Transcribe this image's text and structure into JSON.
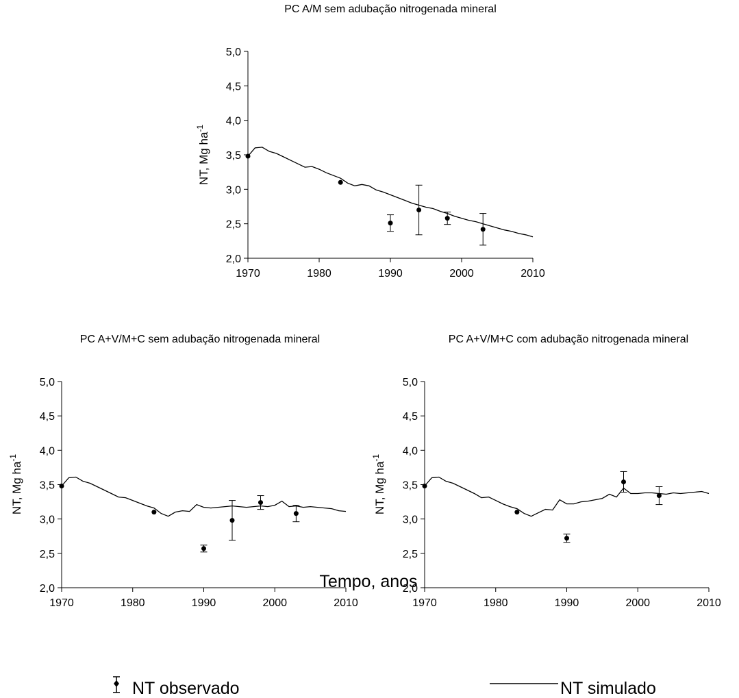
{
  "figure": {
    "xlabel": "Tempo, anos",
    "legend": {
      "observed_label": "NT observado",
      "simulated_label": "NT simulado"
    }
  },
  "chart_data": [
    {
      "type": "line",
      "title": "PC A/M sem adubação nitrogenada mineral",
      "ylabel_main": "NT, Mg ha",
      "ylabel_sup": "-1",
      "xlim": [
        1970,
        2010
      ],
      "ylim": [
        2.0,
        5.0
      ],
      "x_ticks": [
        1970,
        1980,
        1990,
        2000,
        2010
      ],
      "y_ticks": [
        "2,0",
        "2,5",
        "3,0",
        "3,5",
        "4,0",
        "4,5",
        "5,0"
      ],
      "series": [
        {
          "kind": "line",
          "x": [
            1970,
            1971,
            1972,
            1973,
            1974,
            1975,
            1976,
            1977,
            1978,
            1979,
            1980,
            1981,
            1982,
            1983,
            1984,
            1985,
            1986,
            1987,
            1988,
            1989,
            1990,
            1991,
            1992,
            1993,
            1994,
            1995,
            1996,
            1997,
            1998,
            1999,
            2000,
            2001,
            2002,
            2003,
            2004,
            2005,
            2006,
            2007,
            2008,
            2009,
            2010
          ],
          "y": [
            3.48,
            3.6,
            3.61,
            3.55,
            3.52,
            3.47,
            3.42,
            3.37,
            3.32,
            3.33,
            3.29,
            3.24,
            3.2,
            3.16,
            3.09,
            3.05,
            3.07,
            3.05,
            2.99,
            2.96,
            2.92,
            2.88,
            2.84,
            2.8,
            2.77,
            2.74,
            2.72,
            2.68,
            2.65,
            2.61,
            2.58,
            2.55,
            2.53,
            2.5,
            2.47,
            2.44,
            2.41,
            2.39,
            2.36,
            2.34,
            2.31
          ]
        },
        {
          "kind": "points",
          "x": [
            1970,
            1983,
            1990,
            1994,
            1998,
            2003
          ],
          "y": [
            3.48,
            3.1,
            2.51,
            2.7,
            2.58,
            2.42
          ],
          "err": [
            0,
            0,
            0.12,
            0.36,
            0.09,
            0.23
          ]
        }
      ]
    },
    {
      "type": "line",
      "title": "PC A+V/M+C sem adubação nitrogenada mineral",
      "ylabel_main": "NT, Mg ha",
      "ylabel_sup": "-1",
      "xlim": [
        1970,
        2010
      ],
      "ylim": [
        2.0,
        5.0
      ],
      "x_ticks": [
        1970,
        1980,
        1990,
        2000,
        2010
      ],
      "y_ticks": [
        "2,0",
        "2,5",
        "3,0",
        "3,5",
        "4,0",
        "4,5",
        "5,0"
      ],
      "series": [
        {
          "kind": "line",
          "x": [
            1970,
            1971,
            1972,
            1973,
            1974,
            1975,
            1976,
            1977,
            1978,
            1979,
            1980,
            1981,
            1982,
            1983,
            1984,
            1985,
            1986,
            1987,
            1988,
            1989,
            1990,
            1991,
            1992,
            1993,
            1994,
            1995,
            1996,
            1997,
            1998,
            1999,
            2000,
            2001,
            2002,
            2003,
            2004,
            2005,
            2006,
            2007,
            2008,
            2009,
            2010
          ],
          "y": [
            3.48,
            3.6,
            3.61,
            3.55,
            3.52,
            3.47,
            3.42,
            3.37,
            3.32,
            3.31,
            3.27,
            3.23,
            3.19,
            3.16,
            3.08,
            3.04,
            3.1,
            3.12,
            3.11,
            3.21,
            3.17,
            3.16,
            3.17,
            3.18,
            3.19,
            3.18,
            3.17,
            3.18,
            3.19,
            3.18,
            3.2,
            3.26,
            3.18,
            3.19,
            3.17,
            3.18,
            3.17,
            3.16,
            3.15,
            3.12,
            3.11
          ]
        },
        {
          "kind": "points",
          "x": [
            1970,
            1983,
            1990,
            1994,
            1998,
            2003
          ],
          "y": [
            3.48,
            3.1,
            2.57,
            2.98,
            3.24,
            3.08
          ],
          "err": [
            0,
            0,
            0.05,
            0.29,
            0.1,
            0.12
          ]
        }
      ]
    },
    {
      "type": "line",
      "title": "PC A+V/M+C com adubação nitrogenada mineral",
      "ylabel_main": "NT, Mg ha",
      "ylabel_sup": "-1",
      "xlim": [
        1970,
        2010
      ],
      "ylim": [
        2.0,
        5.0
      ],
      "x_ticks": [
        1970,
        1980,
        1990,
        2000,
        2010
      ],
      "y_ticks": [
        "2,0",
        "2,5",
        "3,0",
        "3,5",
        "4,0",
        "4,5",
        "5,0"
      ],
      "series": [
        {
          "kind": "line",
          "x": [
            1970,
            1971,
            1972,
            1973,
            1974,
            1975,
            1976,
            1977,
            1978,
            1979,
            1980,
            1981,
            1982,
            1983,
            1984,
            1985,
            1986,
            1987,
            1988,
            1989,
            1990,
            1991,
            1992,
            1993,
            1994,
            1995,
            1996,
            1997,
            1998,
            1999,
            2000,
            2001,
            2002,
            2003,
            2004,
            2005,
            2006,
            2007,
            2008,
            2009,
            2010
          ],
          "y": [
            3.48,
            3.6,
            3.61,
            3.55,
            3.52,
            3.47,
            3.42,
            3.37,
            3.31,
            3.32,
            3.27,
            3.22,
            3.18,
            3.15,
            3.08,
            3.04,
            3.09,
            3.14,
            3.13,
            3.28,
            3.22,
            3.22,
            3.25,
            3.26,
            3.28,
            3.3,
            3.36,
            3.32,
            3.45,
            3.37,
            3.37,
            3.38,
            3.38,
            3.37,
            3.36,
            3.38,
            3.37,
            3.38,
            3.39,
            3.4,
            3.37
          ]
        },
        {
          "kind": "points",
          "x": [
            1970,
            1983,
            1990,
            1998,
            2003
          ],
          "y": [
            3.48,
            3.1,
            2.72,
            3.54,
            3.34
          ],
          "err": [
            0,
            0,
            0.06,
            0.15,
            0.13
          ]
        }
      ]
    }
  ]
}
